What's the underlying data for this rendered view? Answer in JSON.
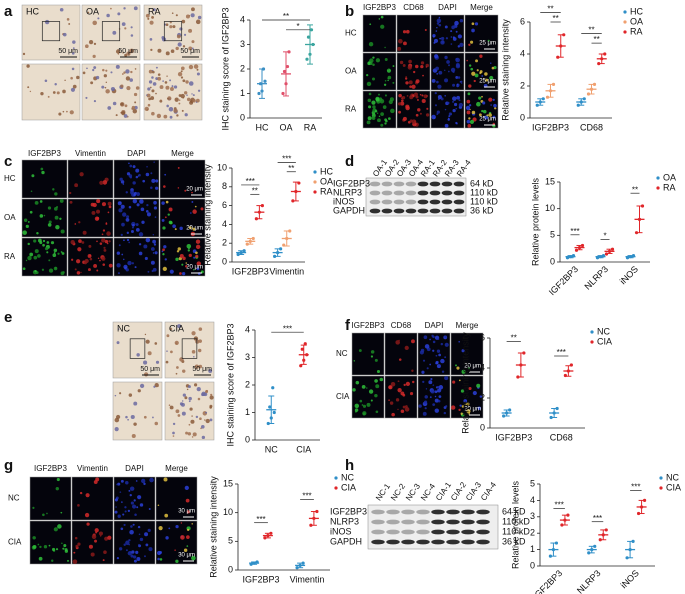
{
  "panels": [
    {
      "letter": "a",
      "labels": [
        "HC",
        "OA",
        "RA"
      ],
      "scale_bars": [
        "50 μm",
        "50 μm",
        "50 μm"
      ]
    },
    {
      "letter": "b",
      "columns": [
        "IGF2BP3",
        "CD68",
        "DAPI",
        "Merge"
      ],
      "rows": [
        "HC",
        "OA",
        "RA"
      ],
      "scale_bars": [
        "25 μm",
        "25 μm",
        "25 μm"
      ]
    },
    {
      "letter": "c",
      "columns": [
        "IGF2BP3",
        "Vimentin",
        "DAPI",
        "Merge"
      ],
      "rows": [
        "HC",
        "OA",
        "RA"
      ],
      "scale_bars": [
        "20 μm",
        "20 μm",
        "20 μm"
      ]
    },
    {
      "letter": "d",
      "lanes": [
        "OA-1",
        "OA-2",
        "OA-3",
        "OA-4",
        "RA-1",
        "RA-2",
        "RA-3",
        "RA-4"
      ],
      "proteins": [
        "IGF2BP3",
        "NLRP3",
        "iNOS",
        "GAPDH"
      ],
      "sizes": [
        "64 kD",
        "110 kD",
        "110 kD",
        "36 kD"
      ]
    },
    {
      "letter": "e",
      "labels": [
        "NC",
        "CIA"
      ],
      "scale_bars": [
        "50 μm",
        "50 μm"
      ]
    },
    {
      "letter": "f",
      "columns": [
        "IGF2BP3",
        "CD68",
        "DAPI",
        "Merge"
      ],
      "rows": [
        "NC",
        "CIA"
      ],
      "scale_bars": [
        "20 μm",
        "20 μm"
      ]
    },
    {
      "letter": "g",
      "columns": [
        "IGF2BP3",
        "Vimentin",
        "DAPI",
        "Merge"
      ],
      "rows": [
        "NC",
        "CIA"
      ],
      "scale_bars": [
        "30 μm",
        "30 μm"
      ]
    },
    {
      "letter": "h",
      "lanes": [
        "NC-1",
        "NC-2",
        "NC-3",
        "NC-4",
        "CIA-1",
        "CIA-2",
        "CIA-3",
        "CIA-4"
      ],
      "proteins": [
        "IGF2BP3",
        "NLRP3",
        "iNOS",
        "GAPDH"
      ],
      "sizes": [
        "64 kD",
        "110 kD",
        "110 kD",
        "36 kD"
      ]
    }
  ],
  "chart_data": [
    {
      "type": "dotplot",
      "y_label": "IHC staining score of IGF2BP3",
      "categories": [
        "HC",
        "OA",
        "RA"
      ],
      "colors": [
        "#3a8fc4",
        "#e0506a",
        "#3aa59f"
      ],
      "values": [
        1.4,
        1.8,
        3.0
      ],
      "errors": [
        0.6,
        0.9,
        0.8
      ],
      "points": [
        [
          1.0,
          1.1,
          1.5,
          1.4,
          2.0
        ],
        [
          1.0,
          1.4,
          2.7,
          1.9,
          2.1
        ],
        [
          2.4,
          2.6,
          3.0,
          3.3,
          3.6
        ]
      ],
      "ylim": [
        0,
        4
      ],
      "yticks": [
        0,
        1,
        2,
        3,
        4
      ],
      "annotations": [
        "**",
        "*"
      ]
    },
    {
      "type": "dotplot",
      "y_label": "Relative staining intensity",
      "categories": [
        "IGF2BP3",
        "CD68"
      ],
      "series": [
        {
          "name": "HC",
          "color": "#2f8fc8",
          "values": [
            1.0,
            1.0
          ],
          "errors": [
            0.2,
            0.2
          ],
          "points": [
            [
              0.8,
              1.0,
              1.2
            ],
            [
              0.8,
              1.0,
              1.2
            ]
          ]
        },
        {
          "name": "OA",
          "color": "#f0a070",
          "values": [
            1.7,
            1.8
          ],
          "errors": [
            0.4,
            0.3
          ],
          "points": [
            [
              1.3,
              1.7,
              2.1
            ],
            [
              1.5,
              1.8,
              2.1
            ]
          ]
        },
        {
          "name": "RA",
          "color": "#e0262a",
          "values": [
            4.5,
            3.7
          ],
          "errors": [
            0.7,
            0.3
          ],
          "points": [
            [
              3.8,
              4.5,
              5.2
            ],
            [
              3.4,
              3.7,
              4.0
            ]
          ]
        }
      ],
      "ylim": [
        0,
        6
      ],
      "yticks": [
        0,
        2,
        4,
        6
      ],
      "annotations": [
        "**",
        "**",
        "**",
        "**"
      ]
    },
    {
      "type": "dotplot",
      "y_label": "Relative staining intensity",
      "categories": [
        "IGF2BP3",
        "Vimentin"
      ],
      "series": [
        {
          "name": "HC",
          "color": "#2f8fc8",
          "values": [
            1.0,
            1.0
          ],
          "errors": [
            0.2,
            0.4
          ],
          "points": [
            [
              0.8,
              1.0,
              1.2
            ],
            [
              0.6,
              1.0,
              1.4
            ]
          ]
        },
        {
          "name": "OA",
          "color": "#f0a070",
          "values": [
            2.2,
            2.5
          ],
          "errors": [
            0.3,
            0.8
          ],
          "points": [
            [
              1.9,
              2.2,
              2.5
            ],
            [
              1.8,
              2.5,
              3.3
            ]
          ]
        },
        {
          "name": "RA",
          "color": "#e0262a",
          "values": [
            5.3,
            7.5
          ],
          "errors": [
            0.7,
            1.0
          ],
          "points": [
            [
              4.6,
              5.3,
              6.0
            ],
            [
              6.5,
              7.5,
              8.4
            ]
          ]
        }
      ],
      "ylim": [
        0,
        10
      ],
      "yticks": [
        0,
        2,
        4,
        6,
        8,
        10
      ],
      "annotations": [
        "***",
        "**",
        "***",
        "**"
      ]
    },
    {
      "type": "dotplot",
      "y_label": "Relative protein levels",
      "categories": [
        "IGF2BP3",
        "NLRP3",
        "iNOS"
      ],
      "series": [
        {
          "name": "OA",
          "color": "#2f8fc8",
          "values": [
            1.0,
            1.0,
            1.0
          ],
          "errors": [
            0.2,
            0.2,
            0.2
          ],
          "points": [
            [
              0.8,
              1.0,
              1.2
            ],
            [
              0.8,
              1.0,
              1.2
            ],
            [
              0.8,
              1.0,
              1.2
            ]
          ]
        },
        {
          "name": "RA",
          "color": "#e0262a",
          "values": [
            2.7,
            2.0,
            8.0
          ],
          "errors": [
            0.4,
            0.4,
            2.5
          ],
          "points": [
            [
              2.2,
              2.7,
              3.1
            ],
            [
              1.5,
              2.0,
              2.4
            ],
            [
              5.5,
              8.0,
              10.5
            ]
          ]
        }
      ],
      "ylim": [
        0,
        15
      ],
      "yticks": [
        0,
        5,
        10,
        15
      ],
      "annotations": [
        "***",
        "*",
        "**"
      ]
    },
    {
      "type": "dotplot",
      "y_label": "IHC staining score of IGF2BP3",
      "categories": [
        "NC",
        "CIA"
      ],
      "colors": [
        "#2f8fc8",
        "#e0262a"
      ],
      "values": [
        1.1,
        3.1
      ],
      "errors": [
        0.5,
        0.35
      ],
      "points": [
        [
          0.6,
          0.8,
          1.0,
          1.2,
          1.9
        ],
        [
          2.7,
          2.9,
          3.1,
          3.3,
          3.5
        ]
      ],
      "ylim": [
        0,
        4
      ],
      "yticks": [
        0,
        1,
        2,
        3,
        4
      ],
      "annotations": [
        "***"
      ]
    },
    {
      "type": "dotplot",
      "y_label": "Relative staining intensity",
      "categories": [
        "IGF2BP3",
        "CD68"
      ],
      "series": [
        {
          "name": "NC",
          "color": "#2f8fc8",
          "values": [
            1.0,
            1.0
          ],
          "errors": [
            0.2,
            0.3
          ],
          "points": [
            [
              0.8,
              1.0,
              1.2
            ],
            [
              0.7,
              1.0,
              1.3
            ]
          ]
        },
        {
          "name": "CIA",
          "color": "#e0262a",
          "values": [
            4.2,
            3.8
          ],
          "errors": [
            0.8,
            0.35
          ],
          "points": [
            [
              3.4,
              4.2,
              5.0
            ],
            [
              3.5,
              3.8,
              4.2
            ]
          ]
        }
      ],
      "ylim": [
        0,
        6
      ],
      "yticks": [
        0,
        2,
        4,
        6
      ],
      "annotations": [
        "**",
        "***"
      ]
    },
    {
      "type": "dotplot",
      "y_label": "Relative staining intensity",
      "categories": [
        "IGF2BP3",
        "Vimentin"
      ],
      "series": [
        {
          "name": "NC",
          "color": "#2f8fc8",
          "values": [
            1.2,
            0.8
          ],
          "errors": [
            0.2,
            0.4
          ],
          "points": [
            [
              1.0,
              1.2,
              1.4
            ],
            [
              0.4,
              0.8,
              1.2
            ]
          ]
        },
        {
          "name": "CIA",
          "color": "#e0262a",
          "values": [
            6.0,
            9.0
          ],
          "errors": [
            0.4,
            1.2
          ],
          "points": [
            [
              5.6,
              6.0,
              6.4
            ],
            [
              7.8,
              9.0,
              10.2
            ]
          ]
        }
      ],
      "ylim": [
        0,
        15
      ],
      "yticks": [
        0,
        5,
        10,
        15
      ],
      "annotations": [
        "***",
        "***"
      ]
    },
    {
      "type": "dotplot",
      "y_label": "Relative protein levels",
      "categories": [
        "IGF2BP3",
        "NLRP3",
        "iNOS"
      ],
      "series": [
        {
          "name": "NC",
          "color": "#2f8fc8",
          "values": [
            1.0,
            1.0,
            1.0
          ],
          "errors": [
            0.4,
            0.2,
            0.5
          ],
          "points": [
            [
              0.6,
              1.0,
              1.4
            ],
            [
              0.8,
              1.0,
              1.2
            ],
            [
              0.5,
              1.0,
              1.5
            ]
          ]
        },
        {
          "name": "CIA",
          "color": "#e0262a",
          "values": [
            2.8,
            1.9,
            3.6
          ],
          "errors": [
            0.3,
            0.3,
            0.4
          ],
          "points": [
            [
              2.5,
              2.8,
              3.1
            ],
            [
              1.6,
              1.9,
              2.2
            ],
            [
              3.2,
              3.6,
              4.0
            ]
          ]
        }
      ],
      "ylim": [
        0,
        5
      ],
      "yticks": [
        0,
        1,
        2,
        3,
        4,
        5
      ],
      "annotations": [
        "***",
        "***",
        "***"
      ]
    }
  ]
}
